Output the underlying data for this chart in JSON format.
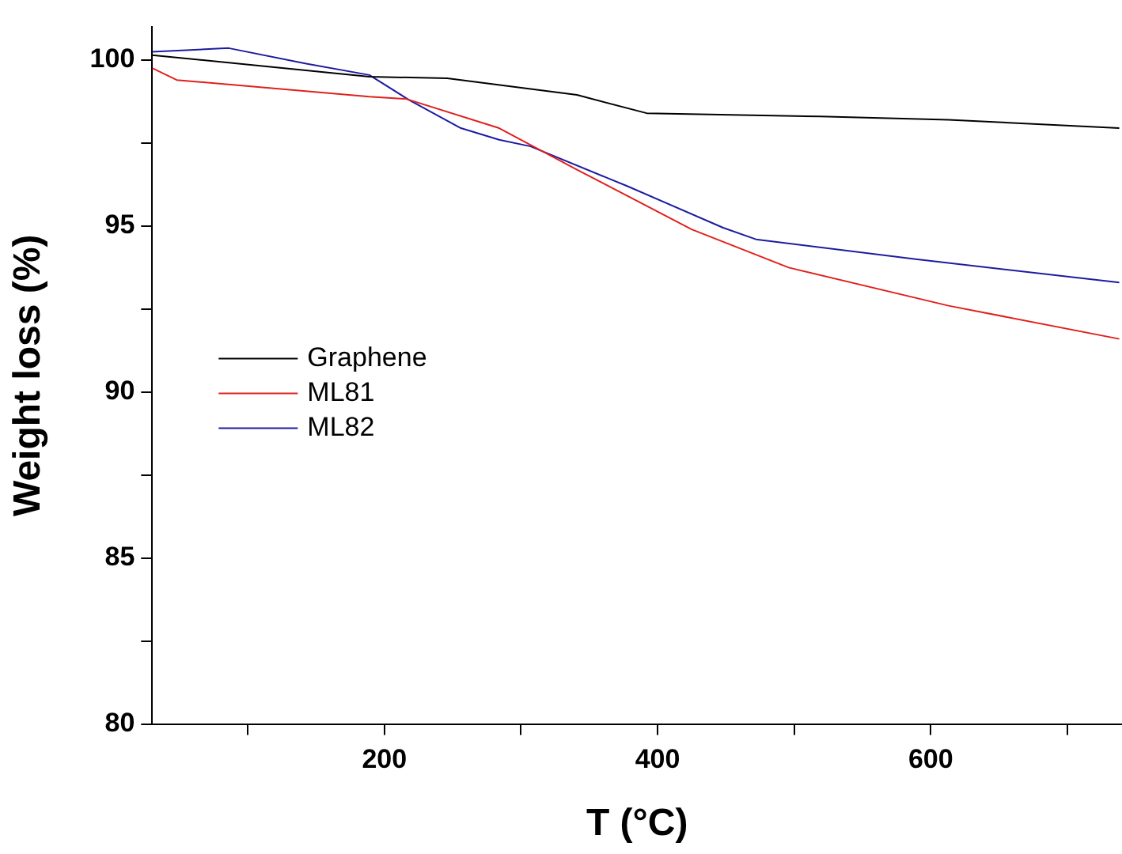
{
  "chart_data": {
    "type": "line",
    "xlabel": "T (°C)",
    "ylabel": "Weight loss (%)",
    "xlim": [
      30,
      740
    ],
    "ylim": [
      80,
      101
    ],
    "xticks": [
      {
        "value": 100,
        "label": null
      },
      200,
      {
        "value": 300,
        "label": null
      },
      400,
      {
        "value": 500,
        "label": null
      },
      600,
      {
        "value": 700,
        "label": null
      }
    ],
    "yticks": [
      80,
      {
        "value": 82.5,
        "label": null
      },
      85,
      {
        "value": 87.5,
        "label": null
      },
      90,
      {
        "value": 92.5,
        "label": null
      },
      95,
      {
        "value": 97.5,
        "label": null
      },
      100
    ],
    "grid": false,
    "legend": "bottom left",
    "marker": "none",
    "line_style": "solid",
    "series": [
      {
        "name": "Graphene",
        "color": "#000000",
        "x": [
          30,
          189,
          246,
          341,
          392,
          519,
          613,
          738
        ],
        "values": [
          100.15,
          99.5,
          99.45,
          98.95,
          98.4,
          98.3,
          98.2,
          97.95
        ]
      },
      {
        "name": "ML81",
        "color": "#e0201c",
        "x": [
          30,
          48,
          189,
          216,
          284,
          341,
          425,
          496,
          613,
          738
        ],
        "values": [
          99.76,
          99.4,
          98.9,
          98.83,
          97.95,
          96.7,
          94.9,
          93.75,
          92.6,
          91.6
        ]
      },
      {
        "name": "ML82",
        "color": "#1c1ca0",
        "x": [
          30,
          86,
          142,
          189,
          218,
          256,
          284,
          307,
          378,
          448,
          472,
          589,
          738
        ],
        "values": [
          100.25,
          100.36,
          99.9,
          99.55,
          98.8,
          97.95,
          97.6,
          97.4,
          96.2,
          94.95,
          94.6,
          94.0,
          93.3
        ]
      }
    ]
  }
}
